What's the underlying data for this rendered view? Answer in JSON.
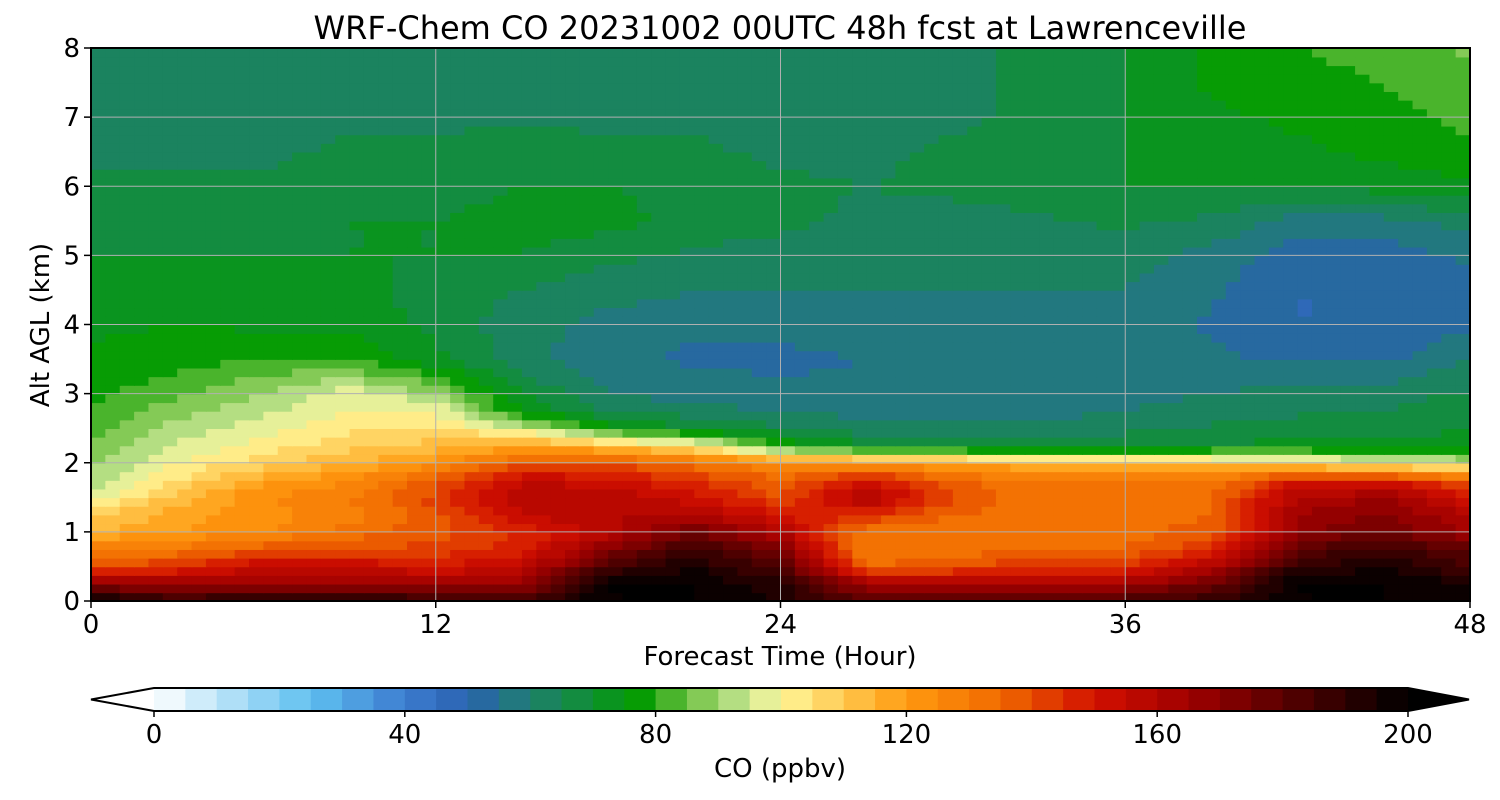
{
  "chart_data": {
    "type": "heatmap",
    "title": "WRF-Chem CO  20231002 00UTC 48h fcst at Lawrenceville",
    "xlabel": "Forecast Time (Hour)",
    "ylabel": "Alt AGL (km)",
    "xlim": [
      0,
      48
    ],
    "ylim": [
      0,
      8
    ],
    "x_ticks": [
      0,
      12,
      24,
      36,
      48
    ],
    "y_ticks": [
      0,
      1,
      2,
      3,
      4,
      5,
      6,
      7,
      8
    ],
    "grid": true,
    "x": [
      0,
      3,
      6,
      9,
      12,
      15,
      18,
      21,
      24,
      27,
      30,
      33,
      36,
      39,
      42,
      45,
      48
    ],
    "y": [
      0,
      0.25,
      0.5,
      0.75,
      1,
      1.25,
      1.5,
      1.75,
      2,
      2.25,
      2.5,
      2.75,
      3,
      3.5,
      4,
      4.5,
      5,
      5.5,
      6,
      6.5,
      7,
      7.5,
      8
    ],
    "z": [
      [
        200,
        190,
        195,
        195,
        190,
        185,
        200,
        200,
        195,
        180,
        185,
        185,
        185,
        190,
        200,
        200,
        200
      ],
      [
        170,
        165,
        168,
        168,
        165,
        168,
        200,
        200,
        192,
        165,
        160,
        162,
        165,
        175,
        200,
        200,
        195
      ],
      [
        138,
        145,
        155,
        155,
        150,
        155,
        185,
        195,
        182,
        135,
        140,
        145,
        145,
        160,
        190,
        195,
        185
      ],
      [
        128,
        132,
        138,
        140,
        142,
        148,
        170,
        188,
        172,
        130,
        132,
        135,
        135,
        145,
        180,
        188,
        178
      ],
      [
        115,
        120,
        125,
        132,
        138,
        145,
        158,
        175,
        160,
        130,
        130,
        130,
        132,
        138,
        168,
        175,
        165
      ],
      [
        108,
        118,
        122,
        128,
        138,
        155,
        160,
        162,
        150,
        145,
        135,
        132,
        132,
        135,
        165,
        172,
        160
      ],
      [
        98,
        112,
        125,
        130,
        142,
        160,
        160,
        152,
        140,
        162,
        140,
        132,
        132,
        134,
        160,
        165,
        150
      ],
      [
        92,
        105,
        118,
        125,
        138,
        155,
        152,
        145,
        136,
        150,
        136,
        130,
        130,
        130,
        150,
        150,
        138
      ],
      [
        88,
        100,
        108,
        115,
        122,
        138,
        140,
        132,
        125,
        122,
        118,
        115,
        112,
        110,
        105,
        100,
        95
      ],
      [
        85,
        96,
        102,
        108,
        112,
        118,
        112,
        103,
        80,
        70,
        68,
        66,
        68,
        70,
        72,
        72,
        72
      ],
      [
        82,
        92,
        98,
        104,
        106,
        96,
        78,
        70,
        66,
        62,
        62,
        62,
        64,
        66,
        68,
        68,
        70
      ],
      [
        80,
        88,
        94,
        100,
        100,
        75,
        65,
        62,
        60,
        58,
        58,
        58,
        60,
        62,
        64,
        65,
        68
      ],
      [
        78,
        84,
        90,
        98,
        90,
        70,
        60,
        58,
        56,
        56,
        56,
        57,
        58,
        60,
        62,
        63,
        66
      ],
      [
        76,
        78,
        80,
        80,
        72,
        62,
        56,
        54,
        54,
        55,
        55,
        56,
        58,
        56,
        54,
        54,
        60
      ],
      [
        74,
        75,
        74,
        74,
        68,
        62,
        58,
        56,
        56,
        57,
        57,
        58,
        58,
        54,
        50,
        50,
        54
      ],
      [
        72,
        72,
        72,
        72,
        68,
        65,
        62,
        60,
        60,
        60,
        60,
        60,
        60,
        56,
        50,
        50,
        54
      ],
      [
        70,
        70,
        70,
        70,
        70,
        70,
        66,
        64,
        63,
        62,
        62,
        62,
        62,
        58,
        52,
        52,
        56
      ],
      [
        68,
        68,
        68,
        70,
        70,
        72,
        72,
        68,
        66,
        64,
        63,
        64,
        66,
        64,
        58,
        58,
        62
      ],
      [
        66,
        66,
        66,
        68,
        68,
        70,
        70,
        68,
        66,
        65,
        66,
        68,
        70,
        70,
        70,
        72,
        74
      ],
      [
        64,
        64,
        64,
        66,
        66,
        68,
        66,
        66,
        64,
        64,
        66,
        68,
        70,
        72,
        74,
        76,
        78
      ],
      [
        62,
        62,
        62,
        64,
        64,
        64,
        64,
        64,
        62,
        62,
        64,
        66,
        70,
        74,
        76,
        78,
        82
      ],
      [
        62,
        62,
        62,
        62,
        62,
        64,
        64,
        64,
        62,
        62,
        64,
        66,
        70,
        76,
        78,
        80,
        84
      ],
      [
        62,
        62,
        62,
        62,
        62,
        64,
        64,
        64,
        62,
        62,
        64,
        66,
        70,
        76,
        80,
        82,
        86
      ]
    ],
    "colorbar": {
      "label": "CO  (ppbv)",
      "vmin": 0,
      "vmax": 200,
      "step": 5,
      "ticks": [
        0,
        40,
        80,
        120,
        160,
        200
      ],
      "extend": "both",
      "colors": [
        {
          "v": 0,
          "c": "#ffffff"
        },
        {
          "v": 15,
          "c": "#9fd8f5"
        },
        {
          "v": 25,
          "c": "#5fc0f0"
        },
        {
          "v": 40,
          "c": "#3c7cd0"
        },
        {
          "v": 50,
          "c": "#2a62b0"
        },
        {
          "v": 60,
          "c": "#1f7f6e"
        },
        {
          "v": 70,
          "c": "#0f9030"
        },
        {
          "v": 77,
          "c": "#009a00"
        },
        {
          "v": 85,
          "c": "#6cc040"
        },
        {
          "v": 95,
          "c": "#cce898"
        },
        {
          "v": 100,
          "c": "#fff89a"
        },
        {
          "v": 110,
          "c": "#ffc850"
        },
        {
          "v": 120,
          "c": "#ff9a10"
        },
        {
          "v": 135,
          "c": "#f06a00"
        },
        {
          "v": 150,
          "c": "#d21000"
        },
        {
          "v": 165,
          "c": "#a00000"
        },
        {
          "v": 182,
          "c": "#500000"
        },
        {
          "v": 200,
          "c": "#000000"
        }
      ]
    }
  }
}
